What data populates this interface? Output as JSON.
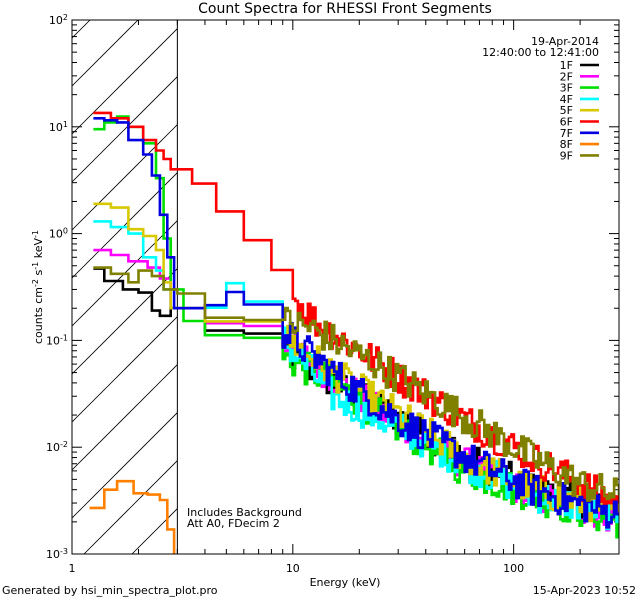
{
  "chart_data": {
    "type": "line",
    "title": "Count Spectra for RHESSI Front Segments",
    "xlabel": "Energy (keV)",
    "ylabel": "counts cm",
    "ylabel_exp1": "-2",
    "ylabel_mid": " s",
    "ylabel_exp2": "-1",
    "ylabel_end": " keV",
    "ylabel_exp3": "-1",
    "xscale": "log",
    "yscale": "log",
    "xlim": [
      1,
      300
    ],
    "ylim": [
      0.001,
      100
    ],
    "x_tick_labels": [
      {
        "value": 1,
        "label": "1"
      },
      {
        "value": 10,
        "label": "10"
      },
      {
        "value": 100,
        "label": "100"
      }
    ],
    "y_tick_labels": [
      {
        "value": 100,
        "base": "10",
        "exp": "2"
      },
      {
        "value": 10,
        "base": "10",
        "exp": "1"
      },
      {
        "value": 1,
        "base": "10",
        "exp": "0"
      },
      {
        "value": 0.1,
        "base": "10",
        "exp": "-1"
      },
      {
        "value": 0.01,
        "base": "10",
        "exp": "-2"
      },
      {
        "value": 0.001,
        "base": "10",
        "exp": "-3"
      }
    ],
    "hatched_region_x": [
      1,
      3
    ],
    "annotations": {
      "date": "19-Apr-2014",
      "time_range": "12:40:00 to 12:41:00",
      "background_note": "Includes Background",
      "attenuator_note": "Att A0, FDecim 2"
    },
    "series": [
      {
        "name": "1F",
        "color": "#000000",
        "start": [
          1.25,
          0.47
        ],
        "points": [
          [
            1.4,
            0.36
          ],
          [
            1.7,
            0.3
          ],
          [
            2.0,
            0.28
          ],
          [
            2.3,
            0.19
          ],
          [
            2.5,
            0.17
          ],
          [
            2.8,
            0.2
          ],
          [
            4,
            0.12
          ],
          [
            6,
            0.12
          ],
          [
            9,
            0.08
          ],
          [
            15,
            0.04
          ],
          [
            30,
            0.019
          ],
          [
            60,
            0.008
          ],
          [
            120,
            0.004
          ],
          [
            250,
            0.0026
          ],
          [
            300,
            0.0023
          ]
        ]
      },
      {
        "name": "2F",
        "color": "#ff00ff",
        "start": [
          1.25,
          0.7
        ],
        "points": [
          [
            1.5,
            0.63
          ],
          [
            1.8,
            0.55
          ],
          [
            2.2,
            0.48
          ],
          [
            2.5,
            0.38
          ],
          [
            2.8,
            0.2
          ],
          [
            4,
            0.14
          ],
          [
            6,
            0.14
          ],
          [
            9,
            0.1
          ],
          [
            15,
            0.045
          ],
          [
            30,
            0.016
          ],
          [
            60,
            0.007
          ],
          [
            120,
            0.0035
          ],
          [
            250,
            0.0024
          ],
          [
            300,
            0.0022
          ]
        ]
      },
      {
        "name": "3F",
        "color": "#00e000",
        "start": [
          1.25,
          9.5
        ],
        "points": [
          [
            1.4,
            11
          ],
          [
            1.6,
            12.5
          ],
          [
            1.8,
            10
          ],
          [
            2.1,
            7
          ],
          [
            2.4,
            3.3
          ],
          [
            2.6,
            0.9
          ],
          [
            2.8,
            0.3
          ],
          [
            3.2,
            0.15
          ],
          [
            4,
            0.12
          ],
          [
            6,
            0.1
          ],
          [
            9,
            0.07
          ],
          [
            15,
            0.04
          ],
          [
            30,
            0.015
          ],
          [
            60,
            0.006
          ],
          [
            120,
            0.0035
          ],
          [
            250,
            0.0022
          ],
          [
            300,
            0.002
          ]
        ]
      },
      {
        "name": "4F",
        "color": "#00ffff",
        "start": [
          1.25,
          1.3
        ],
        "points": [
          [
            1.5,
            1.15
          ],
          [
            1.8,
            1.0
          ],
          [
            2.1,
            0.6
          ],
          [
            2.4,
            0.45
          ],
          [
            2.6,
            0.3
          ],
          [
            2.8,
            0.2
          ],
          [
            4,
            0.2
          ],
          [
            5,
            0.32
          ],
          [
            6,
            0.22
          ],
          [
            9,
            0.1
          ],
          [
            15,
            0.03
          ],
          [
            30,
            0.015
          ],
          [
            60,
            0.007
          ],
          [
            120,
            0.0036
          ],
          [
            250,
            0.0025
          ],
          [
            300,
            0.0023
          ]
        ]
      },
      {
        "name": "5F",
        "color": "#d8c800",
        "start": [
          1.25,
          1.9
        ],
        "points": [
          [
            1.5,
            1.75
          ],
          [
            1.8,
            1.1
          ],
          [
            2.1,
            0.95
          ],
          [
            2.4,
            0.7
          ],
          [
            2.6,
            0.35
          ],
          [
            2.8,
            0.2
          ],
          [
            4,
            0.16
          ],
          [
            6,
            0.16
          ],
          [
            9,
            0.11
          ],
          [
            15,
            0.05
          ],
          [
            30,
            0.02
          ],
          [
            60,
            0.008
          ],
          [
            120,
            0.004
          ],
          [
            250,
            0.0027
          ],
          [
            300,
            0.0025
          ]
        ]
      },
      {
        "name": "6F",
        "color": "#ff0000",
        "start": [
          1.25,
          13.5
        ],
        "points": [
          [
            1.5,
            12
          ],
          [
            1.8,
            10
          ],
          [
            2.1,
            7.5
          ],
          [
            2.4,
            6
          ],
          [
            2.6,
            5
          ],
          [
            2.8,
            4
          ],
          [
            3.5,
            2.8
          ],
          [
            4.5,
            1.5
          ],
          [
            6,
            0.95
          ],
          [
            8,
            0.5
          ],
          [
            10,
            0.25
          ],
          [
            13,
            0.14
          ],
          [
            20,
            0.08
          ],
          [
            30,
            0.045
          ],
          [
            60,
            0.018
          ],
          [
            120,
            0.008
          ],
          [
            200,
            0.0045
          ],
          [
            250,
            0.0035
          ],
          [
            300,
            0.003
          ]
        ]
      },
      {
        "name": "7F",
        "color": "#0000e0",
        "start": [
          1.25,
          12
        ],
        "points": [
          [
            1.4,
            11.5
          ],
          [
            1.6,
            11
          ],
          [
            1.8,
            7.5
          ],
          [
            2.1,
            5.5
          ],
          [
            2.3,
            3.5
          ],
          [
            2.5,
            1.5
          ],
          [
            2.7,
            0.6
          ],
          [
            2.9,
            0.2
          ],
          [
            4,
            0.2
          ],
          [
            5,
            0.3
          ],
          [
            6,
            0.23
          ],
          [
            9,
            0.12
          ],
          [
            15,
            0.05
          ],
          [
            30,
            0.018
          ],
          [
            60,
            0.008
          ],
          [
            120,
            0.004
          ],
          [
            250,
            0.0025
          ],
          [
            300,
            0.0024
          ]
        ]
      },
      {
        "name": "8F",
        "color": "#ff8000",
        "start": [
          1.2,
          0.0027
        ],
        "points": [
          [
            1.4,
            0.004
          ],
          [
            1.6,
            0.0048
          ],
          [
            1.9,
            0.0037
          ],
          [
            2.2,
            0.0036
          ],
          [
            2.5,
            0.0032
          ],
          [
            2.7,
            0.0017
          ],
          [
            2.9,
            0.001
          ]
        ]
      },
      {
        "name": "9F",
        "color": "#808000",
        "start": [
          1.25,
          0.48
        ],
        "points": [
          [
            1.5,
            0.42
          ],
          [
            1.8,
            0.35
          ],
          [
            2.0,
            0.45
          ],
          [
            2.3,
            0.4
          ],
          [
            2.6,
            0.3
          ],
          [
            3.0,
            0.3
          ],
          [
            4,
            0.16
          ],
          [
            6,
            0.17
          ],
          [
            9,
            0.15
          ],
          [
            12,
            0.13
          ],
          [
            15,
            0.1
          ],
          [
            30,
            0.045
          ],
          [
            60,
            0.019
          ],
          [
            120,
            0.008
          ],
          [
            200,
            0.0045
          ],
          [
            300,
            0.0035
          ]
        ]
      }
    ]
  },
  "footer": {
    "left": "Generated by hsi_min_spectra_plot.pro",
    "right": "15-Apr-2023 10:52"
  }
}
